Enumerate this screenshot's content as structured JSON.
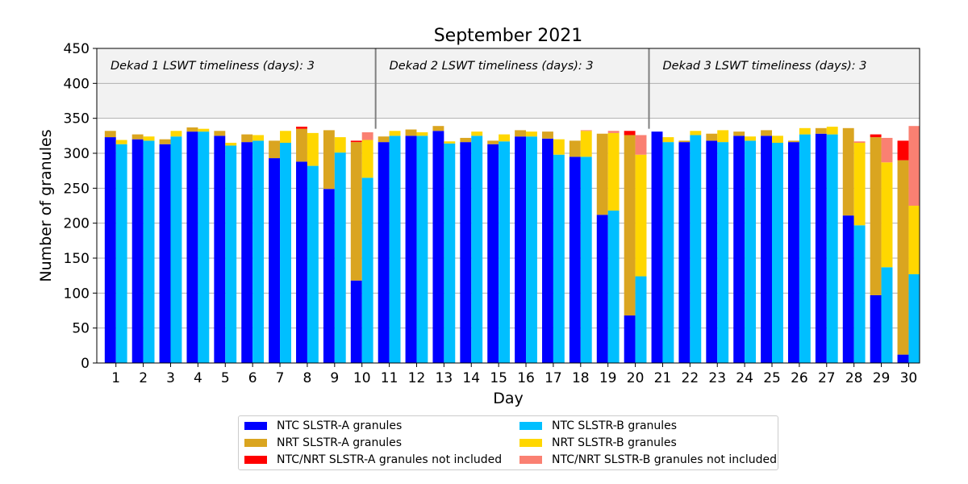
{
  "chart_data": {
    "type": "bar",
    "stacked": true,
    "grouped": true,
    "title": "September 2021",
    "xlabel": "Day",
    "ylabel": "Number of granules",
    "ylim": [
      0,
      450
    ],
    "yticks": [
      0,
      50,
      100,
      150,
      200,
      250,
      300,
      350,
      400,
      450
    ],
    "categories": [
      "1",
      "2",
      "3",
      "4",
      "5",
      "6",
      "7",
      "8",
      "9",
      "10",
      "11",
      "12",
      "13",
      "14",
      "15",
      "16",
      "17",
      "18",
      "19",
      "20",
      "21",
      "22",
      "23",
      "24",
      "25",
      "26",
      "27",
      "28",
      "29",
      "30"
    ],
    "shaded_band": [
      350,
      450
    ],
    "dekad_separators": [
      10.5,
      20.5
    ],
    "annotations": [
      "Dekad 1 LSWT timeliness (days): 3",
      "Dekad 2 LSWT timeliness (days): 3",
      "Dekad 3 LSWT timeliness (days): 3"
    ],
    "grid": true,
    "legend_position": "bottom",
    "series": [
      {
        "name": "NTC SLSTR-A granules",
        "color": "#0000ff",
        "group": "A",
        "values": [
          323,
          320,
          313,
          331,
          325,
          316,
          293,
          288,
          249,
          118,
          316,
          325,
          332,
          316,
          313,
          324,
          321,
          295,
          212,
          68,
          331,
          316,
          318,
          325,
          325,
          316,
          328,
          211,
          97,
          12
        ]
      },
      {
        "name": "NRT SLSTR-A granules",
        "color": "#daa520",
        "group": "A",
        "values": [
          9,
          7,
          7,
          6,
          7,
          11,
          25,
          47,
          84,
          198,
          8,
          9,
          7,
          6,
          5,
          9,
          10,
          23,
          116,
          258,
          0,
          2,
          10,
          6,
          8,
          2,
          8,
          125,
          226,
          278
        ]
      },
      {
        "name": "NTC/NRT SLSTR-A granules not included",
        "color": "#ff0000",
        "group": "A",
        "values": [
          0,
          0,
          0,
          0,
          0,
          0,
          0,
          3,
          0,
          2,
          0,
          0,
          0,
          0,
          0,
          0,
          0,
          0,
          0,
          6,
          0,
          0,
          0,
          0,
          0,
          0,
          0,
          0,
          4,
          28
        ]
      },
      {
        "name": "NTC SLSTR-B granules",
        "color": "#00bfff",
        "group": "B",
        "values": [
          313,
          318,
          324,
          331,
          311,
          318,
          315,
          282,
          301,
          265,
          325,
          325,
          314,
          325,
          317,
          324,
          298,
          295,
          218,
          124,
          316,
          326,
          316,
          318,
          315,
          327,
          327,
          197,
          137,
          127
        ]
      },
      {
        "name": "NRT SLSTR-B granules",
        "color": "#ffd700",
        "group": "B",
        "values": [
          6,
          6,
          8,
          4,
          4,
          8,
          17,
          47,
          22,
          54,
          7,
          5,
          3,
          6,
          10,
          7,
          22,
          37,
          111,
          174,
          7,
          6,
          17,
          6,
          10,
          9,
          11,
          118,
          150,
          98
        ]
      },
      {
        "name": "NTC/NRT SLSTR-B granules not included",
        "color": "#fa8072",
        "group": "B",
        "values": [
          0,
          0,
          0,
          0,
          0,
          0,
          0,
          0,
          0,
          11,
          0,
          0,
          0,
          0,
          0,
          0,
          0,
          1,
          3,
          28,
          0,
          0,
          0,
          0,
          0,
          0,
          0,
          2,
          35,
          114
        ]
      }
    ]
  }
}
